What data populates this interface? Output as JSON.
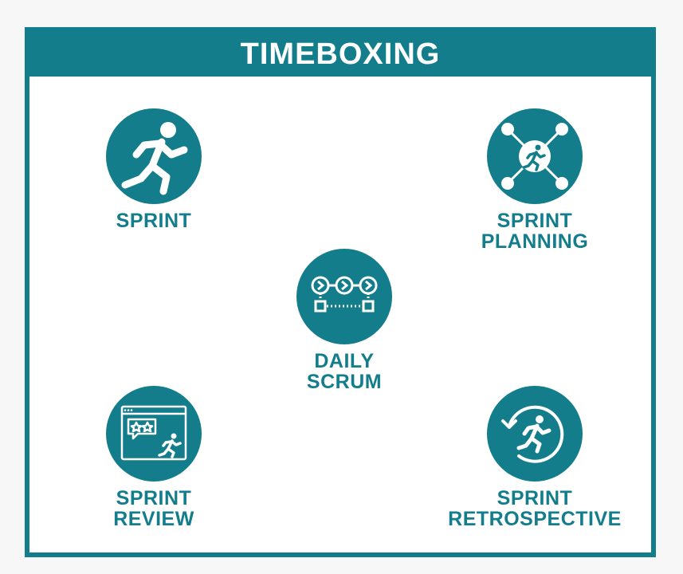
{
  "title": "TIMEBOXING",
  "colors": {
    "accent": "#137d8c",
    "background": "#ffffff",
    "icon_fg": "#ffffff"
  },
  "nodes": [
    {
      "icon": "running-person-icon",
      "lines": [
        "SPRINT"
      ]
    },
    {
      "icon": "network-runner-icon",
      "lines": [
        "SPRINT",
        "PLANNING"
      ]
    },
    {
      "icon": "daily-flow-icon",
      "lines": [
        "DAILY",
        "SCRUM"
      ]
    },
    {
      "icon": "review-window-icon",
      "lines": [
        "SPRINT",
        "REVIEW"
      ]
    },
    {
      "icon": "retrospective-cycle-icon",
      "lines": [
        "SPRINT",
        "RETROSPECTIVE"
      ]
    }
  ]
}
